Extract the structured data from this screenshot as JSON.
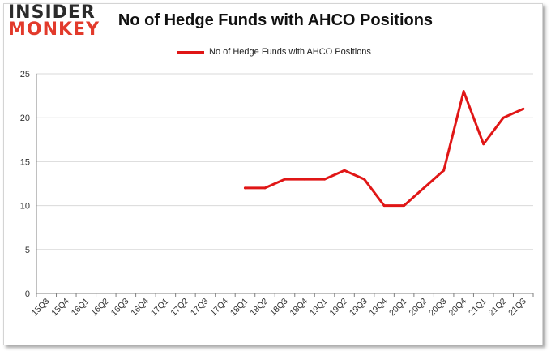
{
  "logo": {
    "line1": "INSIDER",
    "line2": "MONKEY"
  },
  "colors": {
    "series": "#e01616",
    "grid": "#d9d9d9",
    "axis": "#808080"
  },
  "chart_data": {
    "type": "line",
    "title": "No of Hedge Funds with AHCO Positions",
    "xlabel": "",
    "ylabel": "",
    "ylim": [
      0,
      25
    ],
    "yticks": [
      0,
      5,
      10,
      15,
      20,
      25
    ],
    "grid": true,
    "legend_position": "top-center",
    "categories": [
      "15Q3",
      "15Q4",
      "16Q1",
      "16Q2",
      "16Q3",
      "16Q4",
      "17Q1",
      "17Q2",
      "17Q3",
      "17Q4",
      "18Q1",
      "18Q2",
      "18Q3",
      "18Q4",
      "19Q1",
      "19Q2",
      "19Q3",
      "19Q4",
      "20Q1",
      "20Q2",
      "20Q3",
      "20Q4",
      "21Q1",
      "21Q2",
      "21Q3"
    ],
    "series": [
      {
        "name": "No of Hedge Funds with AHCO Positions",
        "values": [
          null,
          null,
          null,
          null,
          null,
          null,
          null,
          null,
          null,
          null,
          12,
          12,
          13,
          13,
          13,
          14,
          13,
          10,
          10,
          12,
          14,
          23,
          17,
          20,
          21
        ]
      }
    ]
  }
}
